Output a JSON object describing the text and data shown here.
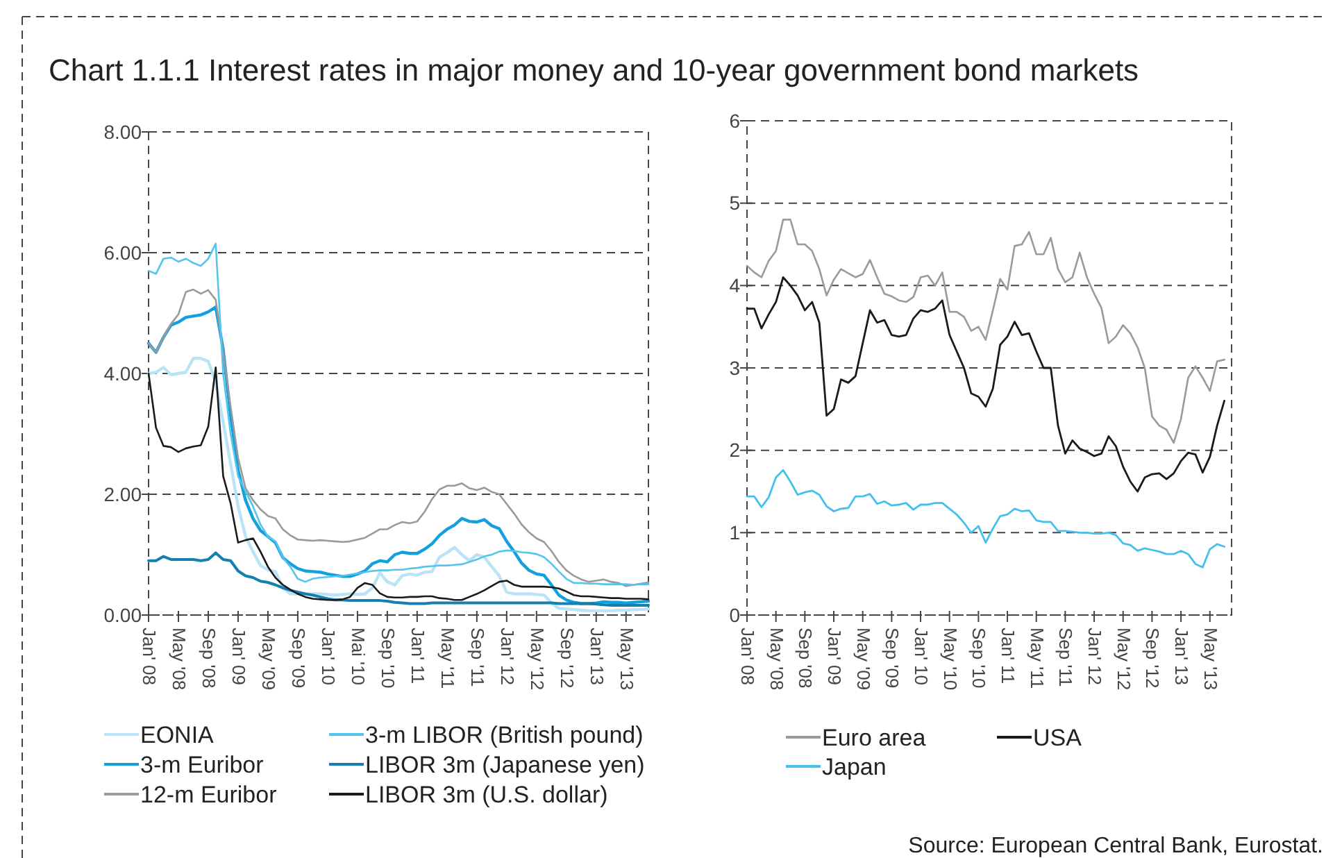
{
  "chart_data": [
    {
      "type": "line",
      "title": "Chart 1.1.1 Interest rates in major money and 10-year government bond markets",
      "categories": [
        "Jan' 08",
        null,
        null,
        null,
        "May '08",
        null,
        null,
        null,
        "Sep '08",
        null,
        null,
        null,
        "Jan' 09",
        null,
        null,
        null,
        "May '09",
        null,
        null,
        null,
        "Sep '09",
        null,
        null,
        null,
        "Jan' 10",
        null,
        null,
        null,
        "Mai '10",
        null,
        null,
        null,
        "Sep '10",
        null,
        null,
        null,
        "Jan' 11",
        null,
        null,
        null,
        "May '11",
        null,
        null,
        null,
        "Sep '11",
        null,
        null,
        null,
        "Jan' 12",
        null,
        null,
        null,
        "May '12",
        null,
        null,
        null,
        "Sep '12",
        null,
        null,
        null,
        "Jan' 13",
        null,
        null,
        null,
        "May '13",
        null,
        null,
        null
      ],
      "ylim": [
        0,
        8
      ],
      "yticks": [
        {
          "value": 0,
          "label": "0.00"
        },
        {
          "value": 2,
          "label": "2.00"
        },
        {
          "value": 4,
          "label": "4.00"
        },
        {
          "value": 6,
          "label": "6.00"
        },
        {
          "value": 8,
          "label": "8.00"
        }
      ],
      "grid": "y",
      "legend": "bottom",
      "line_style": "solid",
      "series": [
        {
          "name": "EONIA",
          "color": "#b9e3f6",
          "values": [
            4.0,
            4.02,
            4.1,
            3.98,
            4.0,
            4.02,
            4.25,
            4.25,
            4.2,
            3.85,
            3.2,
            2.5,
            1.8,
            1.3,
            1.05,
            0.82,
            0.75,
            0.72,
            0.45,
            0.35,
            0.35,
            0.35,
            0.35,
            0.35,
            0.34,
            0.33,
            0.34,
            0.35,
            0.34,
            0.35,
            0.45,
            0.7,
            0.55,
            0.5,
            0.65,
            0.68,
            0.66,
            0.71,
            0.72,
            0.96,
            1.03,
            1.12,
            1.0,
            0.9,
            1.0,
            0.96,
            0.8,
            0.65,
            0.38,
            0.35,
            0.35,
            0.35,
            0.34,
            0.33,
            0.2,
            0.11,
            0.1,
            0.09,
            0.08,
            0.07,
            0.07,
            0.07,
            0.07,
            0.08,
            0.08,
            0.09,
            0.09,
            0.1
          ]
        },
        {
          "name": "3-m Euribor",
          "color": "#12a0de",
          "values": [
            4.5,
            4.35,
            4.6,
            4.8,
            4.85,
            4.93,
            4.95,
            4.97,
            5.02,
            5.1,
            4.4,
            3.3,
            2.4,
            1.9,
            1.6,
            1.4,
            1.3,
            1.2,
            0.95,
            0.85,
            0.77,
            0.73,
            0.72,
            0.71,
            0.68,
            0.66,
            0.64,
            0.64,
            0.68,
            0.73,
            0.85,
            0.9,
            0.88,
            1.0,
            1.04,
            1.02,
            1.02,
            1.09,
            1.18,
            1.32,
            1.42,
            1.49,
            1.6,
            1.55,
            1.54,
            1.58,
            1.48,
            1.43,
            1.22,
            1.05,
            0.86,
            0.74,
            0.68,
            0.66,
            0.5,
            0.33,
            0.25,
            0.21,
            0.19,
            0.19,
            0.2,
            0.22,
            0.21,
            0.21,
            0.2,
            0.21,
            0.22,
            0.23
          ]
        },
        {
          "name": "12-m Euribor",
          "color": "#9a9a9a",
          "values": [
            4.5,
            4.35,
            4.6,
            4.82,
            4.98,
            5.35,
            5.39,
            5.32,
            5.38,
            5.22,
            4.35,
            3.45,
            2.6,
            2.1,
            1.9,
            1.75,
            1.64,
            1.6,
            1.42,
            1.32,
            1.25,
            1.24,
            1.23,
            1.24,
            1.23,
            1.22,
            1.21,
            1.22,
            1.25,
            1.28,
            1.35,
            1.42,
            1.42,
            1.49,
            1.54,
            1.52,
            1.55,
            1.71,
            1.92,
            2.08,
            2.14,
            2.14,
            2.18,
            2.1,
            2.07,
            2.11,
            2.04,
            2.0,
            1.84,
            1.68,
            1.5,
            1.37,
            1.27,
            1.21,
            1.06,
            0.88,
            0.74,
            0.65,
            0.59,
            0.55,
            0.57,
            0.59,
            0.55,
            0.53,
            0.48,
            0.5,
            0.52,
            0.54
          ]
        },
        {
          "name": "3-m LIBOR (British pound)",
          "color": "#55c5ee",
          "values": [
            5.7,
            5.65,
            5.9,
            5.92,
            5.85,
            5.9,
            5.83,
            5.78,
            5.9,
            6.15,
            4.0,
            3.0,
            2.3,
            2.05,
            1.8,
            1.5,
            1.3,
            1.22,
            0.95,
            0.8,
            0.6,
            0.55,
            0.6,
            0.62,
            0.63,
            0.64,
            0.65,
            0.67,
            0.69,
            0.71,
            0.73,
            0.74,
            0.74,
            0.75,
            0.75,
            0.77,
            0.78,
            0.8,
            0.81,
            0.82,
            0.82,
            0.83,
            0.84,
            0.88,
            0.92,
            0.97,
            1.0,
            1.05,
            1.07,
            1.06,
            1.04,
            1.03,
            1.01,
            0.96,
            0.85,
            0.72,
            0.6,
            0.53,
            0.53,
            0.52,
            0.52,
            0.51,
            0.51,
            0.51,
            0.51,
            0.5,
            0.51,
            0.51
          ]
        },
        {
          "name": "LIBOR 3m (Japanese yen)",
          "color": "#1580b0",
          "values": [
            0.9,
            0.9,
            0.97,
            0.92,
            0.92,
            0.92,
            0.92,
            0.9,
            0.92,
            1.03,
            0.92,
            0.9,
            0.73,
            0.65,
            0.62,
            0.56,
            0.54,
            0.5,
            0.45,
            0.41,
            0.38,
            0.35,
            0.33,
            0.3,
            0.27,
            0.25,
            0.25,
            0.24,
            0.24,
            0.24,
            0.24,
            0.24,
            0.23,
            0.21,
            0.2,
            0.19,
            0.19,
            0.19,
            0.2,
            0.2,
            0.2,
            0.2,
            0.2,
            0.2,
            0.2,
            0.2,
            0.2,
            0.2,
            0.2,
            0.2,
            0.2,
            0.2,
            0.2,
            0.2,
            0.2,
            0.19,
            0.19,
            0.19,
            0.19,
            0.19,
            0.18,
            0.17,
            0.16,
            0.16,
            0.16,
            0.16,
            0.16,
            0.16
          ]
        },
        {
          "name": "LIBOR 3m (U.S. dollar)",
          "color": "#1a1a1a",
          "values": [
            4.0,
            3.1,
            2.8,
            2.78,
            2.7,
            2.76,
            2.79,
            2.81,
            3.12,
            4.1,
            2.3,
            1.85,
            1.2,
            1.24,
            1.27,
            1.05,
            0.8,
            0.62,
            0.5,
            0.42,
            0.35,
            0.3,
            0.27,
            0.26,
            0.25,
            0.25,
            0.26,
            0.3,
            0.45,
            0.53,
            0.5,
            0.36,
            0.3,
            0.29,
            0.29,
            0.3,
            0.3,
            0.31,
            0.31,
            0.28,
            0.27,
            0.25,
            0.25,
            0.3,
            0.35,
            0.41,
            0.48,
            0.55,
            0.57,
            0.5,
            0.47,
            0.47,
            0.47,
            0.47,
            0.46,
            0.44,
            0.39,
            0.33,
            0.31,
            0.31,
            0.3,
            0.29,
            0.28,
            0.28,
            0.27,
            0.27,
            0.27,
            0.26
          ]
        }
      ]
    },
    {
      "type": "line",
      "annotations": [
        "Source: European Central Bank, Eurostat."
      ],
      "categories": [
        "Jan' 08",
        null,
        null,
        null,
        "May '08",
        null,
        null,
        null,
        "Sep '08",
        null,
        null,
        null,
        "Jan' 09",
        null,
        null,
        null,
        "May '09",
        null,
        null,
        null,
        "Sep '09",
        null,
        null,
        null,
        "Jan' 10",
        null,
        null,
        null,
        "May '10",
        null,
        null,
        null,
        "Sep '10",
        null,
        null,
        null,
        "Jan' 11",
        null,
        null,
        null,
        "May '11",
        null,
        null,
        null,
        "Sep '11",
        null,
        null,
        null,
        "Jan' 12",
        null,
        null,
        null,
        "May '12",
        null,
        null,
        null,
        "Sep '12",
        null,
        null,
        null,
        "Jan' 13",
        null,
        null,
        null,
        "May '13",
        null,
        null,
        null
      ],
      "ylim": [
        0,
        6
      ],
      "yticks": [
        0,
        1,
        2,
        3,
        4,
        5,
        6
      ],
      "grid": "y",
      "legend": "bottom",
      "line_style": "solid",
      "series": [
        {
          "name": "Euro area",
          "color": "#9a9a9a",
          "values": [
            4.24,
            4.16,
            4.1,
            4.3,
            4.42,
            4.8,
            4.8,
            4.5,
            4.5,
            4.42,
            4.2,
            3.88,
            4.07,
            4.2,
            4.15,
            4.1,
            4.14,
            4.31,
            4.1,
            3.9,
            3.87,
            3.82,
            3.8,
            3.86,
            4.1,
            4.12,
            4.0,
            4.16,
            3.68,
            3.68,
            3.62,
            3.45,
            3.5,
            3.34,
            3.7,
            4.08,
            3.95,
            4.48,
            4.5,
            4.65,
            4.38,
            4.38,
            4.58,
            4.2,
            4.04,
            4.1,
            4.4,
            4.1,
            3.9,
            3.73,
            3.3,
            3.38,
            3.52,
            3.42,
            3.25,
            3.0,
            2.41,
            2.3,
            2.25,
            2.09,
            2.38,
            2.88,
            3.02,
            2.88,
            2.72,
            3.08,
            3.1,
            null
          ]
        },
        {
          "name": "USA",
          "color": "#1a1a1a",
          "values": [
            3.72,
            3.72,
            3.48,
            3.65,
            3.8,
            4.1,
            4.0,
            3.88,
            3.7,
            3.8,
            3.55,
            2.42,
            2.5,
            2.86,
            2.82,
            2.9,
            3.3,
            3.7,
            3.55,
            3.58,
            3.4,
            3.38,
            3.4,
            3.6,
            3.7,
            3.68,
            3.72,
            3.82,
            3.4,
            3.2,
            3.0,
            2.69,
            2.65,
            2.53,
            2.75,
            3.28,
            3.38,
            3.56,
            3.4,
            3.42,
            3.2,
            3.0,
            3.0,
            2.3,
            1.96,
            2.12,
            2.02,
            1.98,
            1.93,
            1.96,
            2.17,
            2.05,
            1.8,
            1.62,
            1.5,
            1.67,
            1.71,
            1.72,
            1.65,
            1.72,
            1.87,
            1.97,
            1.95,
            1.73,
            1.92,
            2.3,
            2.6,
            null
          ]
        },
        {
          "name": "Japan",
          "color": "#45c0ee",
          "values": [
            1.44,
            1.44,
            1.31,
            1.43,
            1.67,
            1.76,
            1.62,
            1.46,
            1.49,
            1.51,
            1.46,
            1.32,
            1.26,
            1.29,
            1.3,
            1.44,
            1.44,
            1.47,
            1.35,
            1.38,
            1.33,
            1.34,
            1.36,
            1.28,
            1.34,
            1.34,
            1.36,
            1.36,
            1.29,
            1.22,
            1.12,
            1.0,
            1.08,
            0.88,
            1.05,
            1.2,
            1.22,
            1.29,
            1.26,
            1.27,
            1.15,
            1.13,
            1.13,
            1.02,
            1.02,
            1.01,
            1.0,
            1.0,
            0.99,
            0.99,
            1.0,
            0.97,
            0.87,
            0.85,
            0.78,
            0.81,
            0.79,
            0.77,
            0.74,
            0.74,
            0.78,
            0.74,
            0.62,
            0.58,
            0.8,
            0.86,
            0.83,
            null
          ]
        }
      ]
    }
  ]
}
